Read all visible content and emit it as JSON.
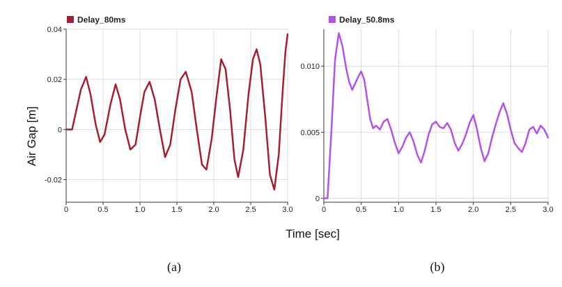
{
  "xlabel": "Time [sec]",
  "ylabel": "Air Gap [m]",
  "chart_data": [
    {
      "type": "line",
      "caption": "(a)",
      "xlim": [
        0,
        3.0
      ],
      "ylim": [
        -0.029,
        0.04
      ],
      "xticks": [
        0,
        0.5,
        1.0,
        1.5,
        2.0,
        2.5,
        3.0
      ],
      "xtick_labels": [
        "0",
        "0.5",
        "1.0",
        "1.5",
        "2.0",
        "2.5",
        "3.0"
      ],
      "yticks": [
        -0.02,
        0,
        0.02,
        0.04
      ],
      "ytick_labels": [
        "-0.02",
        "0",
        "0.02",
        "0.04"
      ],
      "grid": true,
      "legend_position": "top-left",
      "series": [
        {
          "name": "Delay_80ms",
          "color": "#a31f34",
          "x": [
            0,
            0.08,
            0.14,
            0.2,
            0.27,
            0.33,
            0.4,
            0.46,
            0.52,
            0.6,
            0.67,
            0.73,
            0.8,
            0.87,
            0.94,
            1.0,
            1.06,
            1.13,
            1.2,
            1.27,
            1.34,
            1.41,
            1.48,
            1.55,
            1.62,
            1.7,
            1.77,
            1.84,
            1.9,
            1.97,
            2.04,
            2.1,
            2.16,
            2.22,
            2.28,
            2.33,
            2.4,
            2.47,
            2.53,
            2.58,
            2.63,
            2.7,
            2.76,
            2.82,
            2.88,
            2.93,
            2.97,
            3.0
          ],
          "y": [
            0,
            0,
            0.008,
            0.016,
            0.021,
            0.014,
            0.002,
            -0.005,
            -0.002,
            0.01,
            0.018,
            0.012,
            0.0,
            -0.008,
            -0.006,
            0.005,
            0.015,
            0.019,
            0.012,
            0.0,
            -0.011,
            -0.006,
            0.008,
            0.02,
            0.023,
            0.015,
            0.0,
            -0.014,
            -0.016,
            -0.004,
            0.014,
            0.028,
            0.024,
            0.008,
            -0.012,
            -0.019,
            -0.008,
            0.014,
            0.028,
            0.032,
            0.026,
            0.004,
            -0.018,
            -0.024,
            -0.01,
            0.014,
            0.031,
            0.038
          ]
        }
      ]
    },
    {
      "type": "line",
      "caption": "(b)",
      "xlim": [
        0,
        3.0
      ],
      "ylim": [
        -0.0003,
        0.0128
      ],
      "xticks": [
        0,
        0.5,
        1.0,
        1.5,
        2.0,
        2.5,
        3.0
      ],
      "xtick_labels": [
        "0",
        "0.5",
        "1.0",
        "1.5",
        "2.0",
        "2.5",
        "3.0"
      ],
      "yticks": [
        0,
        0.005,
        0.01
      ],
      "ytick_labels": [
        "0",
        "0.005",
        "0.010"
      ],
      "grid": true,
      "legend_position": "top-left",
      "series": [
        {
          "name": "Delay_50.8ms",
          "color": "#b253ec",
          "x": [
            0,
            0.05,
            0.1,
            0.15,
            0.2,
            0.25,
            0.3,
            0.34,
            0.38,
            0.42,
            0.46,
            0.5,
            0.54,
            0.58,
            0.62,
            0.66,
            0.7,
            0.75,
            0.8,
            0.85,
            0.9,
            0.95,
            1.0,
            1.05,
            1.1,
            1.15,
            1.2,
            1.25,
            1.3,
            1.35,
            1.4,
            1.45,
            1.5,
            1.55,
            1.6,
            1.65,
            1.7,
            1.75,
            1.8,
            1.85,
            1.9,
            1.95,
            2.0,
            2.05,
            2.1,
            2.15,
            2.2,
            2.25,
            2.3,
            2.35,
            2.4,
            2.45,
            2.5,
            2.55,
            2.6,
            2.65,
            2.7,
            2.75,
            2.8,
            2.85,
            2.9,
            2.95,
            3.0
          ],
          "y": [
            0,
            0,
            0.005,
            0.0105,
            0.0125,
            0.0115,
            0.0098,
            0.0088,
            0.0082,
            0.0087,
            0.0092,
            0.0096,
            0.009,
            0.0075,
            0.006,
            0.0053,
            0.0055,
            0.0052,
            0.0058,
            0.006,
            0.0052,
            0.0042,
            0.0034,
            0.0039,
            0.0046,
            0.005,
            0.0043,
            0.0033,
            0.0027,
            0.0036,
            0.0048,
            0.0056,
            0.0058,
            0.0054,
            0.0053,
            0.0057,
            0.0052,
            0.0042,
            0.0036,
            0.0041,
            0.0048,
            0.0057,
            0.0063,
            0.0052,
            0.0038,
            0.0028,
            0.0034,
            0.0046,
            0.0056,
            0.0065,
            0.0072,
            0.0064,
            0.0052,
            0.0042,
            0.0038,
            0.0035,
            0.0042,
            0.0052,
            0.0054,
            0.0049,
            0.0055,
            0.0052,
            0.0046
          ]
        }
      ]
    }
  ]
}
